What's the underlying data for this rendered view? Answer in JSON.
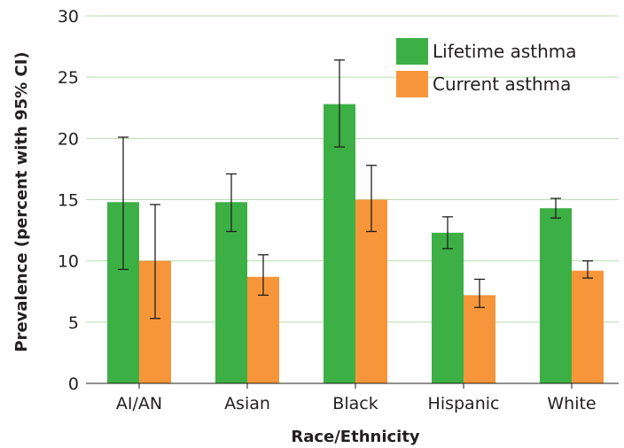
{
  "chart_data": {
    "type": "bar",
    "title": "",
    "xlabel": "Race/Ethnicity",
    "ylabel": "Prevalence (percent with 95% CI)",
    "ylim": [
      0,
      30
    ],
    "yticks": [
      0,
      5,
      10,
      15,
      20,
      25,
      30
    ],
    "grid": true,
    "legend_position": "top-right",
    "categories": [
      "AI/AN",
      "Asian",
      "Black",
      "Hispanic",
      "White"
    ],
    "series": [
      {
        "name": "Lifetime asthma",
        "color": "#3cb044",
        "values": [
          14.8,
          14.8,
          22.8,
          12.3,
          14.3
        ],
        "ci_low": [
          9.3,
          12.4,
          19.3,
          11.0,
          13.5
        ],
        "ci_high": [
          20.1,
          17.1,
          26.4,
          13.6,
          15.1
        ]
      },
      {
        "name": "Current asthma",
        "color": "#f7953a",
        "values": [
          10.0,
          8.7,
          15.0,
          7.2,
          9.2
        ],
        "ci_low": [
          5.3,
          7.2,
          12.4,
          6.2,
          8.6
        ],
        "ci_high": [
          14.6,
          10.5,
          17.8,
          8.5,
          10.0
        ]
      }
    ]
  }
}
